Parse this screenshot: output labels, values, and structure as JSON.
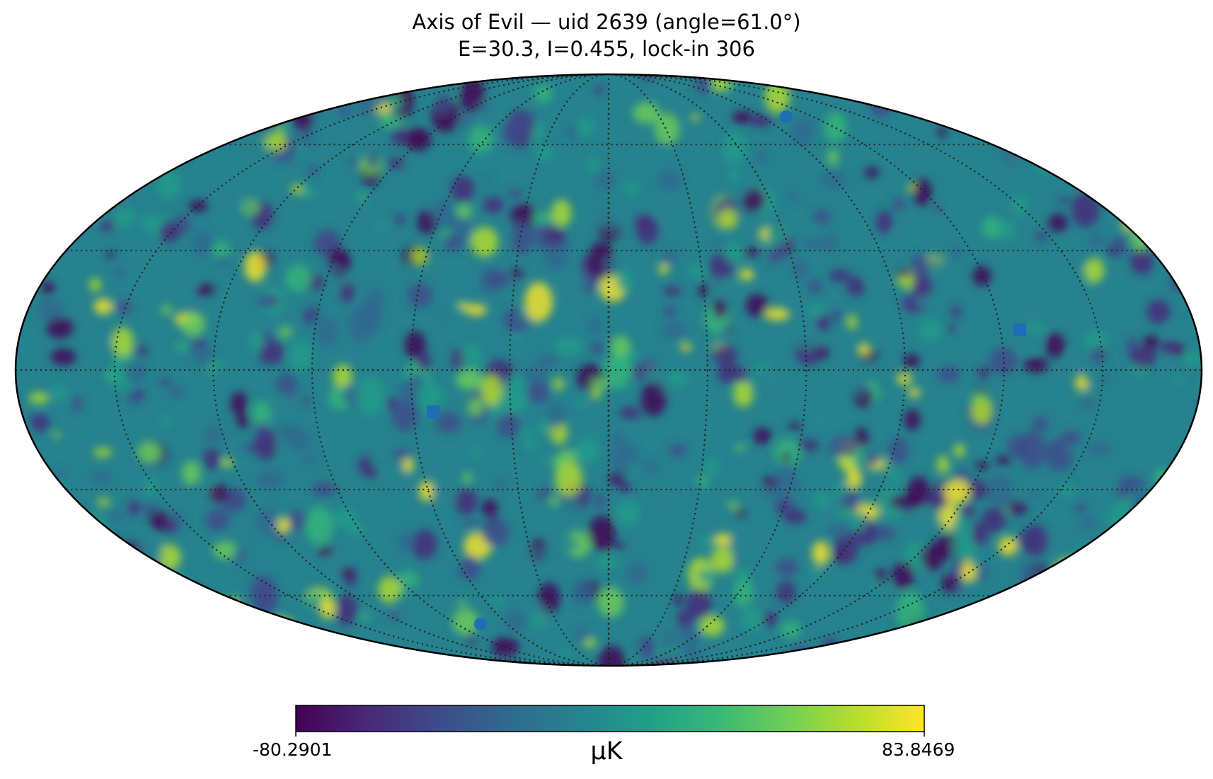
{
  "title": {
    "line1": "Axis of Evil — uid 2639  (angle=61.0°)",
    "line2": "E=30.3, I=0.455, lock-in 306"
  },
  "map": {
    "projection": "mollweide",
    "graticule": "dotted",
    "markers": [
      {
        "shape": "circle",
        "color": "#1f6db5"
      },
      {
        "shape": "circle",
        "color": "#1f6db5"
      },
      {
        "shape": "square",
        "color": "#1f6db5"
      },
      {
        "shape": "square",
        "color": "#1f6db5"
      }
    ]
  },
  "colorbar": {
    "min_label": "-80.2901",
    "max_label": "83.8469",
    "unit": "μK",
    "colormap": "viridis",
    "stops": [
      "#440154",
      "#482878",
      "#3e4a89",
      "#31688e",
      "#26828e",
      "#1f9e89",
      "#35b779",
      "#6ece58",
      "#b5de2b",
      "#fde725"
    ]
  }
}
